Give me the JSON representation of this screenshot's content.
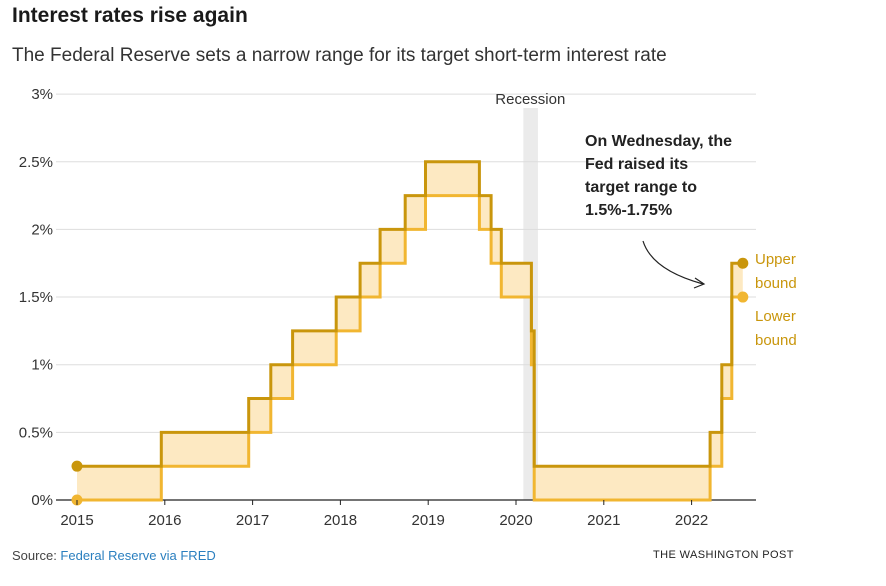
{
  "title": "Interest rates rise again",
  "subtitle": "The Federal Reserve sets a narrow range for its target short-term interest rate",
  "source_label": "Source: ",
  "source_link": "Federal Reserve via FRED",
  "credit": "THE WASHINGTON POST",
  "colors": {
    "upper": "#c9960c",
    "lower": "#f1b631",
    "fill": "#fde9c2",
    "recession": "#ebebeb",
    "grid": "#dddddd"
  },
  "chart_data": {
    "type": "line",
    "step": true,
    "x_ticks": [
      "2015",
      "2016",
      "2017",
      "2018",
      "2019",
      "2020",
      "2021",
      "2022"
    ],
    "y_ticks": [
      "0%",
      "0.5%",
      "1%",
      "1.5%",
      "2%",
      "2.5%",
      "3%"
    ],
    "ylim": [
      0,
      3
    ],
    "xlim": [
      "2015-01",
      "2022-08"
    ],
    "grid": true,
    "recession": {
      "label": "Recession",
      "start": "2020-02",
      "end": "2020-04"
    },
    "series": [
      {
        "name": "Upper bound",
        "dates": [
          "2015-01-01",
          "2015-12-17",
          "2016-12-15",
          "2017-03-16",
          "2017-06-15",
          "2017-12-14",
          "2018-03-22",
          "2018-06-14",
          "2018-09-27",
          "2018-12-20",
          "2019-08-01",
          "2019-09-19",
          "2019-10-31",
          "2020-03-04",
          "2020-03-16",
          "2022-03-17",
          "2022-05-05",
          "2022-06-16",
          "2022-07-28"
        ],
        "values": [
          0.25,
          0.5,
          0.75,
          1.0,
          1.25,
          1.5,
          1.75,
          2.0,
          2.25,
          2.5,
          2.25,
          2.0,
          1.75,
          1.25,
          0.25,
          0.5,
          1.0,
          1.75,
          1.75
        ]
      },
      {
        "name": "Lower bound",
        "dates": [
          "2015-01-01",
          "2015-12-17",
          "2016-12-15",
          "2017-03-16",
          "2017-06-15",
          "2017-12-14",
          "2018-03-22",
          "2018-06-14",
          "2018-09-27",
          "2018-12-20",
          "2019-08-01",
          "2019-09-19",
          "2019-10-31",
          "2020-03-04",
          "2020-03-16",
          "2022-03-17",
          "2022-05-05",
          "2022-06-16",
          "2022-07-28"
        ],
        "values": [
          0,
          0.25,
          0.5,
          0.75,
          1.0,
          1.25,
          1.5,
          1.75,
          2.0,
          2.25,
          2.0,
          1.75,
          1.5,
          1.0,
          0,
          0.25,
          0.75,
          1.5,
          1.5
        ]
      }
    ],
    "labels": {
      "upper": [
        "Upper",
        "bound"
      ],
      "lower": [
        "Lower",
        "bound"
      ]
    },
    "annotation": [
      "On Wednesday, the",
      "Fed raised its",
      "target range to",
      "1.5%-1.75%"
    ]
  }
}
